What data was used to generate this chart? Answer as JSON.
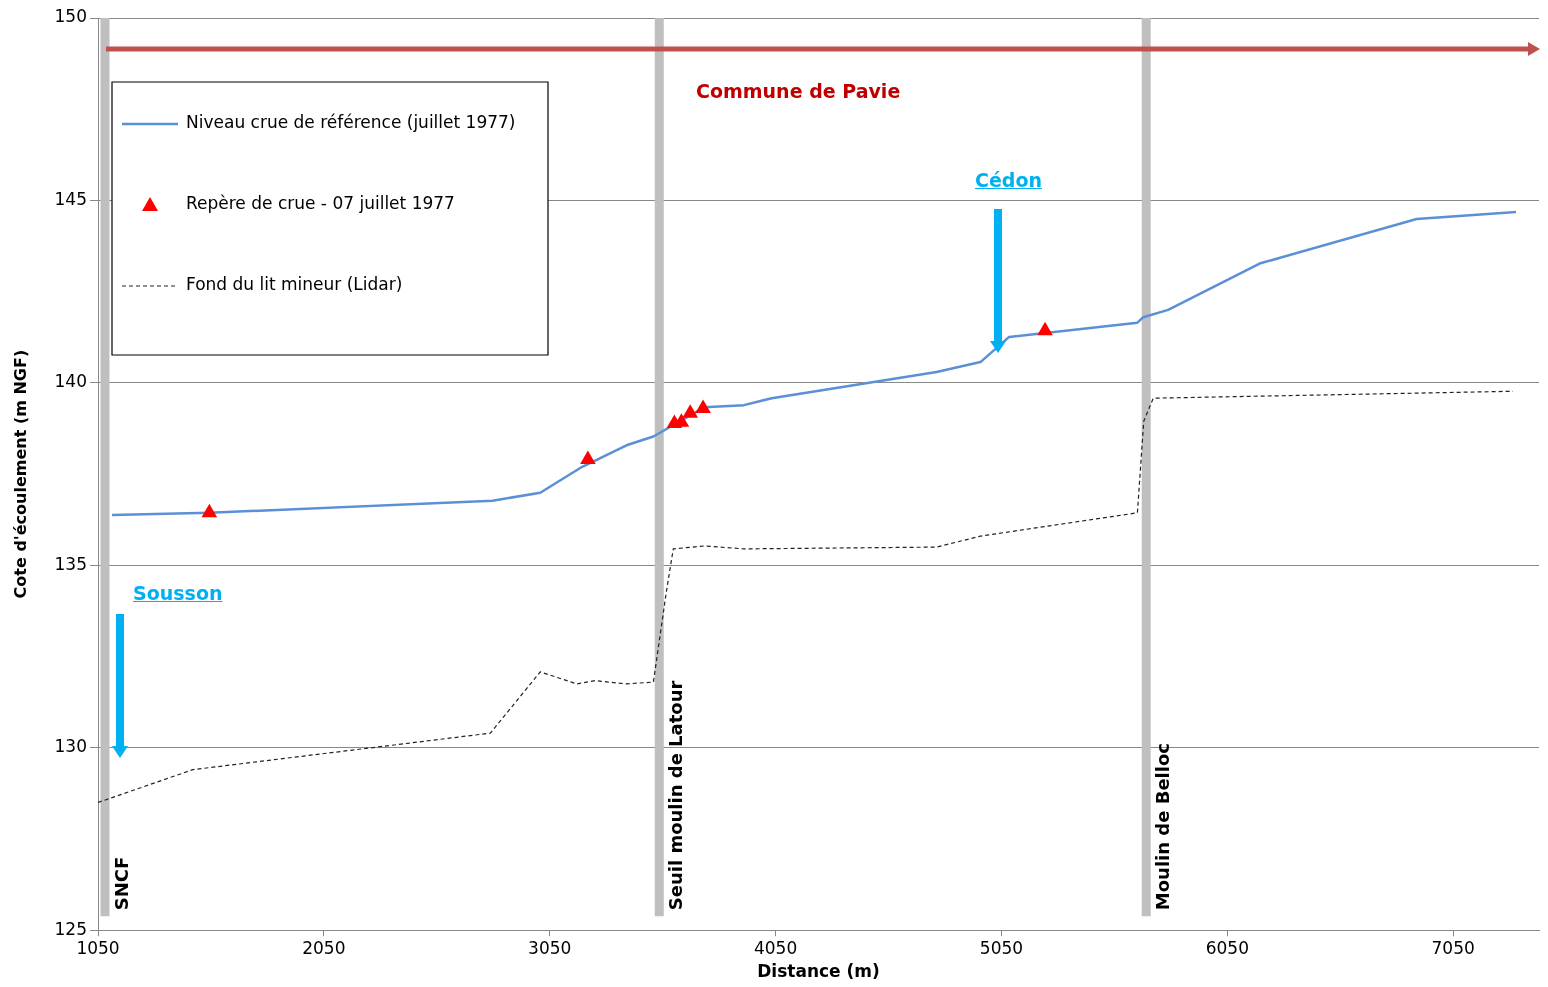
{
  "chart_data": {
    "type": "line",
    "xlabel": "Distance (m)",
    "ylabel": "Cote d'écoulement (m NGF)",
    "xlim": [
      1050,
      7430
    ],
    "xticks": [
      1050,
      2050,
      3050,
      4050,
      5050,
      6050,
      7050
    ],
    "ylim": [
      125,
      150
    ],
    "yticks": [
      125,
      130,
      135,
      140,
      145,
      150
    ],
    "grid": "y",
    "legend": "top left",
    "series": [
      {
        "name": "Niveau crue de référence (juillet 1977)",
        "color": "#5b8fd6",
        "marker": "none",
        "line_style": "solid",
        "x": [
          1112,
          1543,
          2797,
          3008,
          3194,
          3390,
          3509,
          3734,
          3910,
          4033,
          4763,
          4957,
          5084,
          5652,
          5678,
          5788,
          6193,
          6888,
          7328
        ],
        "values": [
          136.38,
          136.44,
          136.77,
          136.99,
          137.7,
          138.29,
          138.53,
          139.33,
          139.39,
          139.58,
          140.3,
          140.57,
          141.26,
          141.65,
          141.8,
          142.0,
          143.27,
          144.49,
          144.68
        ]
      },
      {
        "name": "Repère de crue - 07 juillet 1977",
        "type": "scatter",
        "color": "#ff0000",
        "marker": "triangle",
        "x": [
          1543,
          3219,
          3602,
          3633,
          3672,
          3729,
          5243
        ],
        "values": [
          136.44,
          137.9,
          138.89,
          138.92,
          139.17,
          139.3,
          141.43
        ]
      },
      {
        "name": "Fond du lit mineur (Lidar)",
        "color": "#222222",
        "marker": "none",
        "line_style": "dashed",
        "x": [
          1050,
          1470,
          2787,
          3008,
          3170,
          3250,
          3390,
          3509,
          3567,
          3597,
          3734,
          3910,
          4763,
          4957,
          5652,
          5680,
          5722,
          7315
        ],
        "values": [
          128.5,
          129.4,
          130.4,
          132.08,
          131.75,
          131.84,
          131.75,
          131.8,
          134.3,
          135.45,
          135.53,
          135.45,
          135.5,
          135.8,
          136.44,
          138.95,
          139.58,
          139.77
        ]
      }
    ],
    "ref_lines": [
      {
        "axis": "x",
        "value": 1081,
        "label": "SNCF",
        "color": "#bfbfbf"
      },
      {
        "axis": "x",
        "value": 3535,
        "label": "Seuil moulin de Latour",
        "color": "#bfbfbf"
      },
      {
        "axis": "x",
        "value": 5691,
        "label": "Moulin de Belloc",
        "color": "#bfbfbf"
      }
    ],
    "annotations": [
      "Commune de Pavie",
      "Sousson",
      "Cédon"
    ]
  }
}
